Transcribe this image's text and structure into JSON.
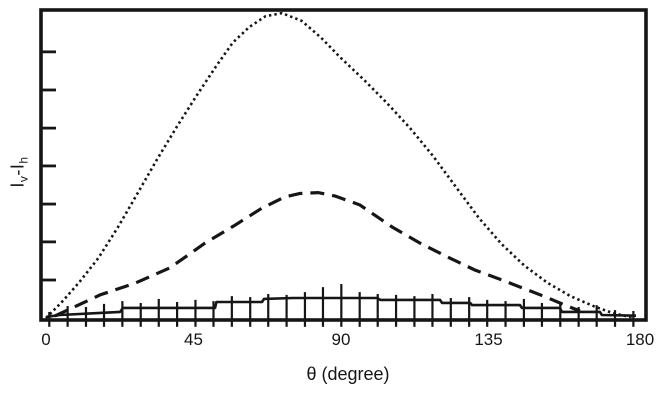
{
  "chart": {
    "xlabel": "θ (degree)",
    "ylabel_parts": [
      "I",
      "v",
      "-",
      "I",
      "h"
    ],
    "x_tick_labels": [
      "0",
      "45",
      "90",
      "135",
      "180"
    ],
    "ink_color": "#161616",
    "background_color": "#ffffff"
  },
  "chart_data": {
    "type": "line",
    "title": "",
    "xlabel": "θ (degree)",
    "ylabel": "Iv-Ih",
    "xlim": [
      0,
      180
    ],
    "x_ticks": [
      0,
      45,
      90,
      135,
      180
    ],
    "y_axis": {
      "labeled": false,
      "tick_positions_normalized": [
        0.129,
        0.252,
        0.374,
        0.497,
        0.619,
        0.742,
        0.865
      ]
    },
    "ylim_normalized": [
      0,
      1
    ],
    "grid": false,
    "legend": "none",
    "series": [
      {
        "name": "dotted-curve",
        "line_style": "dotted",
        "color": "#161616",
        "points": [
          [
            0,
            0.006
          ],
          [
            5,
            0.06
          ],
          [
            10,
            0.12
          ],
          [
            16,
            0.2
          ],
          [
            22,
            0.3
          ],
          [
            28,
            0.41
          ],
          [
            34,
            0.52
          ],
          [
            40,
            0.625
          ],
          [
            46,
            0.725
          ],
          [
            52,
            0.82
          ],
          [
            57,
            0.895
          ],
          [
            62,
            0.945
          ],
          [
            67,
            0.98
          ],
          [
            72,
            0.99
          ],
          [
            78,
            0.965
          ],
          [
            84,
            0.91
          ],
          [
            90,
            0.845
          ],
          [
            97,
            0.775
          ],
          [
            104,
            0.7
          ],
          [
            111,
            0.62
          ],
          [
            118,
            0.53
          ],
          [
            125,
            0.43
          ],
          [
            132,
            0.33
          ],
          [
            139,
            0.245
          ],
          [
            146,
            0.175
          ],
          [
            153,
            0.12
          ],
          [
            160,
            0.077
          ],
          [
            167,
            0.045
          ],
          [
            173,
            0.022
          ],
          [
            179,
            0.008
          ]
        ]
      },
      {
        "name": "dashed-curve",
        "line_style": "dashed",
        "color": "#161616",
        "points": [
          [
            2.7,
            0.013
          ],
          [
            16.5,
            0.081
          ],
          [
            27.2,
            0.119
          ],
          [
            37.8,
            0.168
          ],
          [
            48.5,
            0.248
          ],
          [
            57.7,
            0.306
          ],
          [
            65.9,
            0.361
          ],
          [
            72.9,
            0.397
          ],
          [
            77.5,
            0.408
          ],
          [
            83,
            0.411
          ],
          [
            88.2,
            0.4
          ],
          [
            95.8,
            0.371
          ],
          [
            105.6,
            0.3
          ],
          [
            114.1,
            0.248
          ],
          [
            122.6,
            0.203
          ],
          [
            130.9,
            0.161
          ],
          [
            139.1,
            0.129
          ],
          [
            147.7,
            0.094
          ],
          [
            153.2,
            0.071
          ],
          [
            158.3,
            0.048
          ],
          [
            162.9,
            0.029
          ]
        ]
      },
      {
        "name": "solid-curve-with-errorbars",
        "line_style": "solid",
        "color": "#161616",
        "points": [
          [
            0,
            0.01
          ],
          [
            4.3,
            0.016
          ],
          [
            16.5,
            0.023
          ],
          [
            22.6,
            0.026
          ],
          [
            23.5,
            0.039
          ],
          [
            51.6,
            0.039
          ],
          [
            52,
            0.058
          ],
          [
            65.9,
            0.058
          ],
          [
            66.5,
            0.068
          ],
          [
            75.4,
            0.071
          ],
          [
            101,
            0.071
          ],
          [
            102,
            0.065
          ],
          [
            120.2,
            0.065
          ],
          [
            120.8,
            0.055
          ],
          [
            129.4,
            0.055
          ],
          [
            130,
            0.048
          ],
          [
            144.6,
            0.048
          ],
          [
            145.2,
            0.039
          ],
          [
            156.8,
            0.039
          ],
          [
            157.4,
            0.026
          ],
          [
            169,
            0.026
          ],
          [
            169.6,
            0.016
          ],
          [
            180,
            0.014
          ]
        ],
        "error_bars": [
          [
            1.0,
            0.026,
            -0.022
          ],
          [
            6.6,
            0.045,
            -0.022
          ],
          [
            12.2,
            0.042,
            -0.022
          ],
          [
            17.7,
            0.052,
            -0.022
          ],
          [
            23.3,
            0.061,
            -0.022
          ],
          [
            28.9,
            0.055,
            -0.022
          ],
          [
            34.4,
            0.068,
            -0.022
          ],
          [
            40.0,
            0.058,
            -0.022
          ],
          [
            45.6,
            0.065,
            -0.022
          ],
          [
            51.1,
            0.061,
            -0.022
          ],
          [
            56.7,
            0.077,
            -0.022
          ],
          [
            62.3,
            0.074,
            -0.022
          ],
          [
            67.8,
            0.084,
            -0.022
          ],
          [
            73.4,
            0.081,
            -0.022
          ],
          [
            79.0,
            0.09,
            -0.022
          ],
          [
            84.5,
            0.106,
            -0.022
          ],
          [
            90.1,
            0.116,
            -0.022
          ],
          [
            95.7,
            0.09,
            -0.022
          ],
          [
            101.2,
            0.084,
            -0.022
          ],
          [
            106.8,
            0.081,
            -0.022
          ],
          [
            112.4,
            0.077,
            -0.022
          ],
          [
            117.9,
            0.084,
            -0.022
          ],
          [
            123.5,
            0.071,
            -0.022
          ],
          [
            129.1,
            0.074,
            -0.022
          ],
          [
            134.6,
            0.065,
            -0.022
          ],
          [
            140.2,
            0.061,
            -0.022
          ],
          [
            145.8,
            0.068,
            -0.022
          ],
          [
            151.3,
            0.055,
            -0.022
          ],
          [
            156.9,
            0.058,
            -0.022
          ],
          [
            162.5,
            0.042,
            -0.022
          ],
          [
            168.0,
            0.048,
            -0.022
          ],
          [
            173.6,
            0.032,
            -0.022
          ],
          [
            179.2,
            0.029,
            -0.022
          ]
        ]
      }
    ]
  }
}
